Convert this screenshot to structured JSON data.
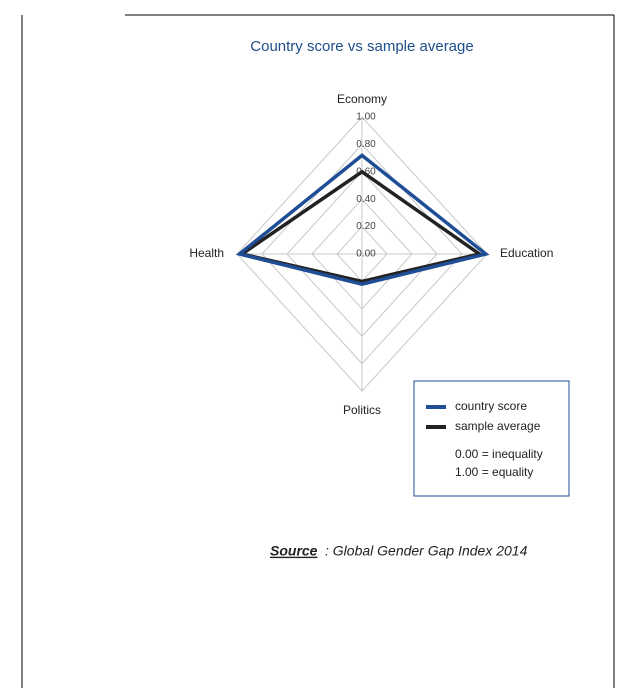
{
  "chart_data": {
    "type": "radar",
    "title": "Country score vs sample average",
    "categories": [
      "Economy",
      "Education",
      "Politics",
      "Health"
    ],
    "series": [
      {
        "name": "country score",
        "color": "#1f4e96",
        "values": [
          0.72,
          0.99,
          0.22,
          0.98
        ]
      },
      {
        "name": "sample average",
        "color": "#222222",
        "values": [
          0.6,
          0.94,
          0.2,
          0.96
        ]
      }
    ],
    "rlim": [
      0,
      1
    ],
    "rticks": [
      {
        "value": 0,
        "label": "0.00"
      },
      {
        "value": 0.2,
        "label": "0.20"
      },
      {
        "value": 0.4,
        "label": "0.40"
      },
      {
        "value": 0.6,
        "label": "0.60"
      },
      {
        "value": 0.8,
        "label": "0.80"
      },
      {
        "value": 1,
        "label": "1.00"
      }
    ],
    "notes": [
      "0.00 = inequality",
      "1.00 = equality"
    ]
  },
  "source": {
    "label": "Source",
    "text": " : Global Gender Gap Index 2014"
  }
}
